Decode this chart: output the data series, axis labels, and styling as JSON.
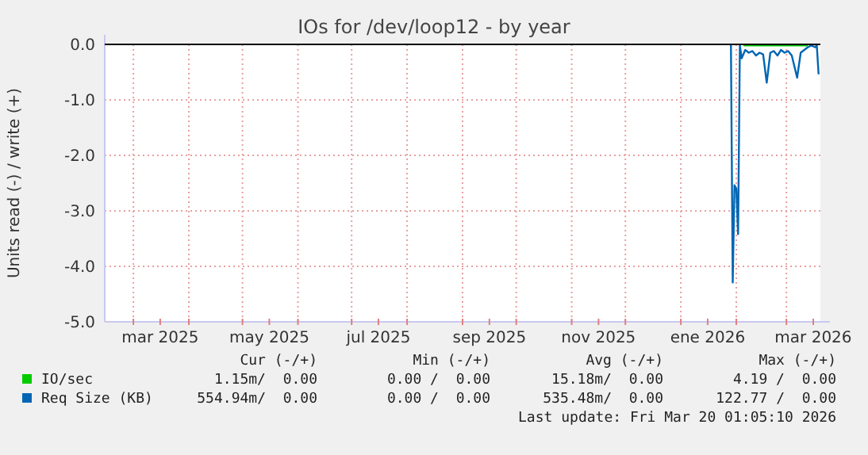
{
  "chart_data": {
    "type": "line",
    "title": "IOs for /dev/loop12 - by year",
    "ylabel": "Units read (-) / write (+)",
    "xlim": [
      "2025-02-13",
      "2026-03-20"
    ],
    "xticks": [
      {
        "value": "2025-03-01",
        "label": null
      },
      {
        "value": "2025-04-01",
        "label": null
      },
      {
        "value": "2025-05-01",
        "label": null
      },
      {
        "value": "2025-06-01",
        "label": null
      },
      {
        "value": "2025-07-01",
        "label": null
      },
      {
        "value": "2025-08-01",
        "label": null
      },
      {
        "value": "2025-09-01",
        "label": null
      },
      {
        "value": "2025-10-01",
        "label": null
      },
      {
        "value": "2025-11-01",
        "label": null
      },
      {
        "value": "2025-12-01",
        "label": null
      },
      {
        "value": "2026-01-01",
        "label": null
      },
      {
        "value": "2026-02-01",
        "label": null
      },
      {
        "value": "2026-03-01",
        "label": null
      },
      {
        "value": "2025-03-16",
        "label": "mar 2025"
      },
      {
        "value": "2025-05-16",
        "label": "may 2025"
      },
      {
        "value": "2025-07-16",
        "label": "jul 2025"
      },
      {
        "value": "2025-09-16",
        "label": "sep 2025"
      },
      {
        "value": "2025-11-16",
        "label": "nov 2025"
      },
      {
        "value": "2026-01-16",
        "label": "ene 2026"
      },
      {
        "value": "2026-03-16",
        "label": "mar 2026"
      }
    ],
    "ylim": [
      -5,
      0
    ],
    "yticks": [
      {
        "value": -5,
        "label": "-5.0"
      },
      {
        "value": -4,
        "label": "-4.0"
      },
      {
        "value": -3,
        "label": "-3.0"
      },
      {
        "value": -2,
        "label": "-2.0"
      },
      {
        "value": -1,
        "label": "-1.0"
      },
      {
        "value": 0,
        "label": "0.0"
      }
    ],
    "grid": true,
    "legend": "bottom",
    "marker": "none",
    "line_style": "solid",
    "ref_lines": [
      {
        "axis": "y",
        "value": 0,
        "color": "#000000"
      }
    ],
    "series": [
      {
        "name": "IO/sec",
        "color": "#00cc00",
        "x": [
          "2026-02-05",
          "2026-03-13"
        ],
        "values": [
          -0.02,
          -0.02
        ]
      },
      {
        "name": "Req Size (KB)",
        "color": "#0066b3",
        "x": [
          "2026-01-29",
          "2026-01-30",
          "2026-01-31",
          "2026-02-01",
          "2026-02-02",
          "2026-02-03",
          "2026-02-04",
          "2026-02-06",
          "2026-02-08",
          "2026-02-10",
          "2026-02-12",
          "2026-02-14",
          "2026-02-16",
          "2026-02-18",
          "2026-02-20",
          "2026-02-22",
          "2026-02-24",
          "2026-02-26",
          "2026-02-28",
          "2026-03-02",
          "2026-03-04",
          "2026-03-07",
          "2026-03-09",
          "2026-03-11",
          "2026-03-13",
          "2026-03-15",
          "2026-03-17",
          "2026-03-18",
          "2026-03-19"
        ],
        "values": [
          0,
          -4.29,
          -2.54,
          -2.6,
          -3.42,
          -0.02,
          -0.25,
          -0.1,
          -0.15,
          -0.12,
          -0.2,
          -0.15,
          -0.18,
          -0.69,
          -0.15,
          -0.12,
          -0.2,
          -0.1,
          -0.15,
          -0.12,
          -0.2,
          -0.6,
          -0.15,
          -0.1,
          -0.05,
          -0.02,
          -0.05,
          -0.02,
          -0.54
        ]
      }
    ],
    "annotations": [
      "Cur (-/+)",
      "Min (-/+)",
      "Avg (-/+)",
      "Max (-/+)",
      "1.15m/  0.00",
      "0.00 /  0.00",
      "15.18m/  0.00",
      "4.19 /  0.00",
      "554.94m/  0.00",
      "0.00 /  0.00",
      "535.48m/  0.00",
      "122.77 /  0.00",
      "Last update: Fri Mar 20 01:05:10 2026"
    ]
  }
}
